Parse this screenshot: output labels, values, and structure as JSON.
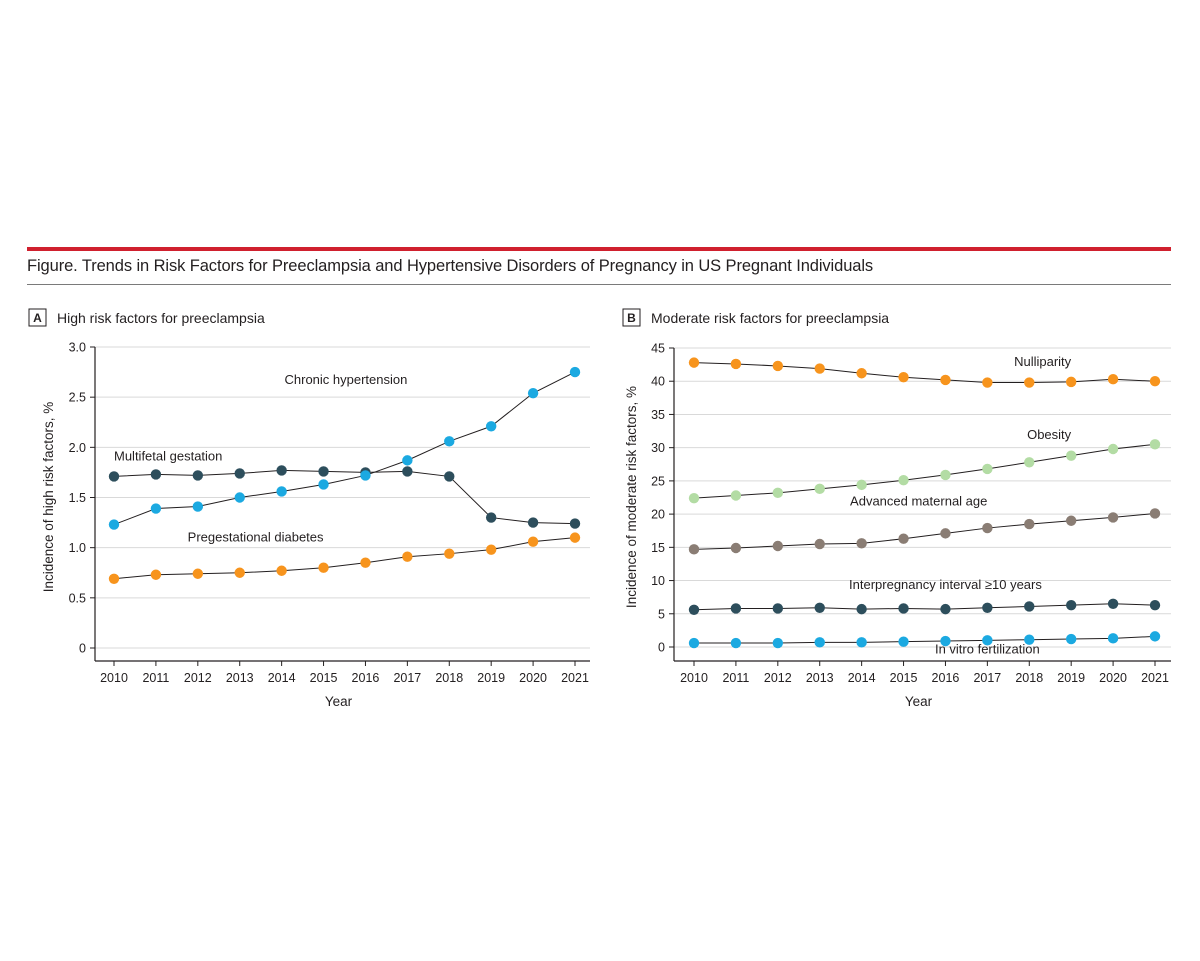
{
  "figure": {
    "title": "Figure. Trends in Risk Factors for Preeclampsia and Hypertensive Disorders of Pregnancy in US Pregnant Individuals",
    "colors": {
      "rule_red": "#d0202e",
      "orange": "#f7941d",
      "blue": "#1ba9e1",
      "dark": "#2d4e5c",
      "light_green": "#b3dca4",
      "taupe": "#8a7d74"
    }
  },
  "chart_data": [
    {
      "type": "line",
      "panel_letter": "A",
      "title": "High risk factors for preeclampsia",
      "xlabel": "Year",
      "ylabel": "Incidence of high risk factors, %",
      "x": [
        "2010",
        "2011",
        "2012",
        "2013",
        "2014",
        "2015",
        "2016",
        "2017",
        "2018",
        "2019",
        "2020",
        "2021"
      ],
      "ylim": [
        0,
        3.0
      ],
      "yticks": [
        0,
        0.5,
        1.0,
        1.5,
        2.0,
        2.5,
        3.0
      ],
      "ytick_labels": [
        "0",
        "0.5",
        "1.0",
        "1.5",
        "2.0",
        "2.5",
        "3.0"
      ],
      "grid": true,
      "series": [
        {
          "name": "Multifetal gestation",
          "color": "#2d4e5c",
          "label_x": "2010",
          "label_y": 1.87,
          "values": [
            1.71,
            1.73,
            1.72,
            1.74,
            1.77,
            1.76,
            1.75,
            1.76,
            1.71,
            1.3,
            1.25,
            1.24
          ]
        },
        {
          "name": "Chronic hypertension",
          "color": "#1ba9e1",
          "label_x": "2017",
          "label_y": 2.63,
          "values": [
            1.23,
            1.39,
            1.41,
            1.5,
            1.56,
            1.63,
            1.72,
            1.87,
            2.06,
            2.21,
            2.54,
            2.75
          ]
        },
        {
          "name": "Pregestational diabetes",
          "color": "#f7941d",
          "label_x": "2015",
          "label_y": 1.06,
          "values": [
            0.69,
            0.73,
            0.74,
            0.75,
            0.77,
            0.8,
            0.85,
            0.91,
            0.94,
            0.98,
            1.06,
            1.1
          ]
        }
      ]
    },
    {
      "type": "line",
      "panel_letter": "B",
      "title": "Moderate risk factors for preeclampsia",
      "xlabel": "Year",
      "ylabel": "Incidence of moderate risk factors, %",
      "x": [
        "2010",
        "2011",
        "2012",
        "2013",
        "2014",
        "2015",
        "2016",
        "2017",
        "2018",
        "2019",
        "2020",
        "2021"
      ],
      "ylim": [
        0,
        45
      ],
      "yticks": [
        0,
        5,
        10,
        15,
        20,
        25,
        30,
        35,
        40,
        45
      ],
      "ytick_labels": [
        "0",
        "5",
        "10",
        "15",
        "20",
        "25",
        "30",
        "35",
        "40",
        "45"
      ],
      "grid": true,
      "series": [
        {
          "name": "Nulliparity",
          "color": "#f7941d",
          "label_x": "2019",
          "label_y": 42.3,
          "values": [
            42.8,
            42.6,
            42.3,
            41.9,
            41.2,
            40.6,
            40.2,
            39.8,
            39.8,
            39.9,
            40.3,
            40.0
          ]
        },
        {
          "name": "Obesity",
          "color": "#b3dca4",
          "label_x": "2019",
          "label_y": 31.3,
          "values": [
            22.4,
            22.8,
            23.2,
            23.8,
            24.4,
            25.1,
            25.9,
            26.8,
            27.8,
            28.8,
            29.8,
            30.5
          ]
        },
        {
          "name": "Advanced maternal age",
          "color": "#8a7d74",
          "label_x": "2017",
          "label_y": 21.3,
          "values": [
            14.7,
            14.9,
            15.2,
            15.5,
            15.6,
            16.3,
            17.1,
            17.9,
            18.5,
            19.0,
            19.5,
            20.1
          ]
        },
        {
          "name": "Interpregnancy interval ≥10 years",
          "color": "#2d4e5c",
          "label_x": "2016",
          "label_y": 8.7,
          "values": [
            5.6,
            5.8,
            5.8,
            5.9,
            5.7,
            5.8,
            5.7,
            5.9,
            6.1,
            6.3,
            6.5,
            6.3
          ]
        },
        {
          "name": "In vitro fertilization",
          "color": "#1ba9e1",
          "label_x": "2017",
          "label_y": -1.0,
          "values": [
            0.6,
            0.6,
            0.6,
            0.7,
            0.7,
            0.8,
            0.9,
            1.0,
            1.1,
            1.2,
            1.3,
            1.6
          ]
        }
      ]
    }
  ]
}
